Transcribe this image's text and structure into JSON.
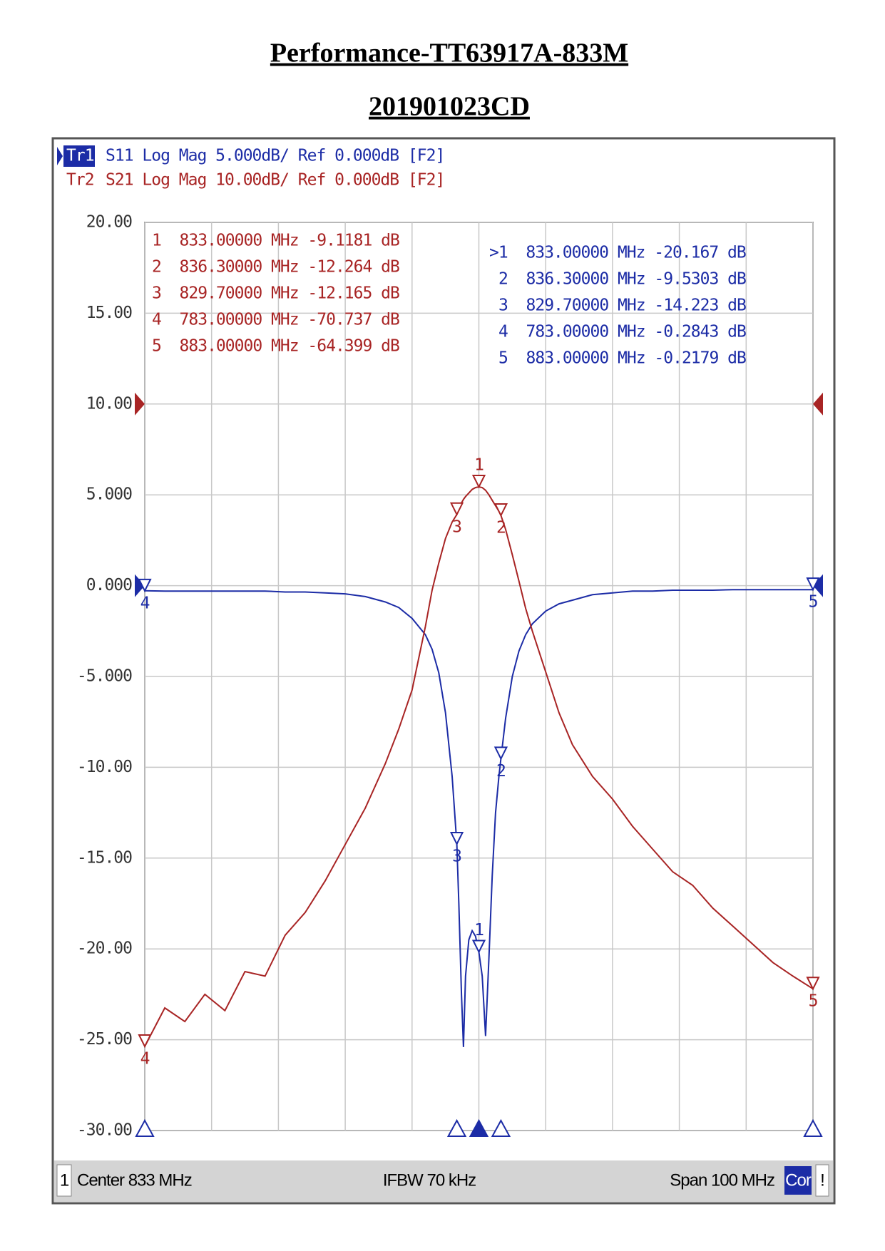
{
  "chart_data": {
    "type": "line",
    "title": "Performance-TT63917A-833M",
    "subtitle": "201901023CD",
    "x": [
      783,
      786,
      789,
      792,
      795,
      798,
      801,
      804,
      807,
      810,
      813,
      816,
      819,
      821,
      823,
      825,
      826,
      827,
      828,
      829,
      829.7,
      830,
      830.4,
      830.7,
      831,
      831.5,
      832,
      832.5,
      833,
      833.5,
      834,
      834.5,
      835,
      835.5,
      836,
      836.3,
      837,
      838,
      839,
      840,
      841,
      843,
      845,
      847,
      850,
      853,
      856,
      859,
      862,
      865,
      868,
      871,
      874,
      877,
      880,
      883
    ],
    "xlim": [
      783,
      883
    ],
    "xticks": [
      783,
      793,
      803,
      813,
      823,
      833,
      843,
      853,
      863,
      873,
      883
    ],
    "ylim": [
      -30,
      20
    ],
    "yticks": [
      {
        "value": 20,
        "label": "20.00"
      },
      {
        "value": 15,
        "label": "15.00"
      },
      {
        "value": 10,
        "label": "10.00"
      },
      {
        "value": 5,
        "label": "5.000"
      },
      {
        "value": 0,
        "label": "0.000"
      },
      {
        "value": -5,
        "label": "-5.000"
      },
      {
        "value": -10,
        "label": "-10.00"
      },
      {
        "value": -15,
        "label": "-15.00"
      },
      {
        "value": -20,
        "label": "-20.00"
      },
      {
        "value": -25,
        "label": "-25.00"
      },
      {
        "value": -30,
        "label": "-30.00"
      }
    ],
    "y2lim": [
      -80,
      20
    ],
    "grid": true,
    "series": [
      {
        "name": "Tr1",
        "description": "S11 Log Mag 5.000dB/ Ref 0.000dB [F2]",
        "color": "#1c2ca6",
        "ref": 0,
        "active": true,
        "values": [
          -0.2843,
          -0.3,
          -0.3,
          -0.3,
          -0.3,
          -0.3,
          -0.3,
          -0.35,
          -0.35,
          -0.4,
          -0.45,
          -0.6,
          -0.9,
          -1.2,
          -1.8,
          -2.7,
          -3.5,
          -4.8,
          -7.0,
          -10.5,
          -14.223,
          -17.5,
          -22.5,
          -25.4,
          -21.5,
          -19.5,
          -19.0,
          -19.3,
          -20.167,
          -21.5,
          -24.8,
          -20.5,
          -16.0,
          -12.5,
          -10.5,
          -9.5303,
          -7.3,
          -5.0,
          -3.6,
          -2.7,
          -2.1,
          -1.4,
          -1.0,
          -0.8,
          -0.5,
          -0.4,
          -0.3,
          -0.3,
          -0.25,
          -0.25,
          -0.25,
          -0.22,
          -0.22,
          -0.22,
          -0.22,
          -0.2179
        ],
        "markers": [
          {
            "name": "1",
            "x": 833,
            "value": -20.167,
            "label": ">1  833.00000 MHz -20.167 dB",
            "active": true
          },
          {
            "name": "2",
            "x": 836.3,
            "value": -9.5303,
            "label": "2  836.30000 MHz -9.5303 dB"
          },
          {
            "name": "3",
            "x": 829.7,
            "value": -14.223,
            "label": "3  829.70000 MHz -14.223 dB"
          },
          {
            "name": "4",
            "x": 783,
            "value": -0.2843,
            "label": "4  783.00000 MHz -0.2843 dB"
          },
          {
            "name": "5",
            "x": 883,
            "value": -0.2179,
            "label": "5  883.00000 MHz -0.2179 dB"
          }
        ]
      },
      {
        "name": "Tr2",
        "description": "S21 Log Mag 10.00dB/ Ref 0.000dB [F2]",
        "color": "#a82424",
        "axis": "y2",
        "ref": 0,
        "values": [
          -70.737,
          -66.5,
          -68.0,
          -65.0,
          -66.8,
          -62.5,
          -63.0,
          -58.5,
          -56.0,
          -52.5,
          -48.5,
          -44.5,
          -39.6,
          -35.8,
          -31.5,
          -24.5,
          -20.5,
          -17.5,
          -14.8,
          -13.0,
          -12.165,
          -11.6,
          -10.9,
          -10.5,
          -10.2,
          -9.8,
          -9.4,
          -9.2,
          -9.1181,
          -9.2,
          -9.5,
          -10.0,
          -10.6,
          -11.2,
          -11.8,
          -12.264,
          -13.8,
          -16.6,
          -19.5,
          -22.5,
          -25.0,
          -29.5,
          -34.0,
          -37.5,
          -41.0,
          -43.5,
          -46.5,
          -49.0,
          -51.5,
          -53.0,
          -55.5,
          -57.5,
          -59.5,
          -61.5,
          -63.0,
          -64.399
        ],
        "markers": [
          {
            "name": "1",
            "x": 833,
            "value": -9.1181,
            "label": "1  833.00000 MHz -9.1181 dB"
          },
          {
            "name": "2",
            "x": 836.3,
            "value": -12.264,
            "label": "2  836.30000 MHz -12.264 dB"
          },
          {
            "name": "3",
            "x": 829.7,
            "value": -12.165,
            "label": "3  829.70000 MHz -12.165 dB"
          },
          {
            "name": "4",
            "x": 783,
            "value": -70.737,
            "label": "4  783.00000 MHz -70.737 dB"
          },
          {
            "name": "5",
            "x": 883,
            "value": -64.399,
            "label": "5  883.00000 MHz -64.399 dB"
          }
        ]
      }
    ],
    "status_bar": {
      "channel": "1",
      "center": "Center 833 MHz",
      "ifbw": "IFBW 70 kHz",
      "span": "Span 100 MHz",
      "correction": "Cor",
      "alert": "!"
    }
  }
}
